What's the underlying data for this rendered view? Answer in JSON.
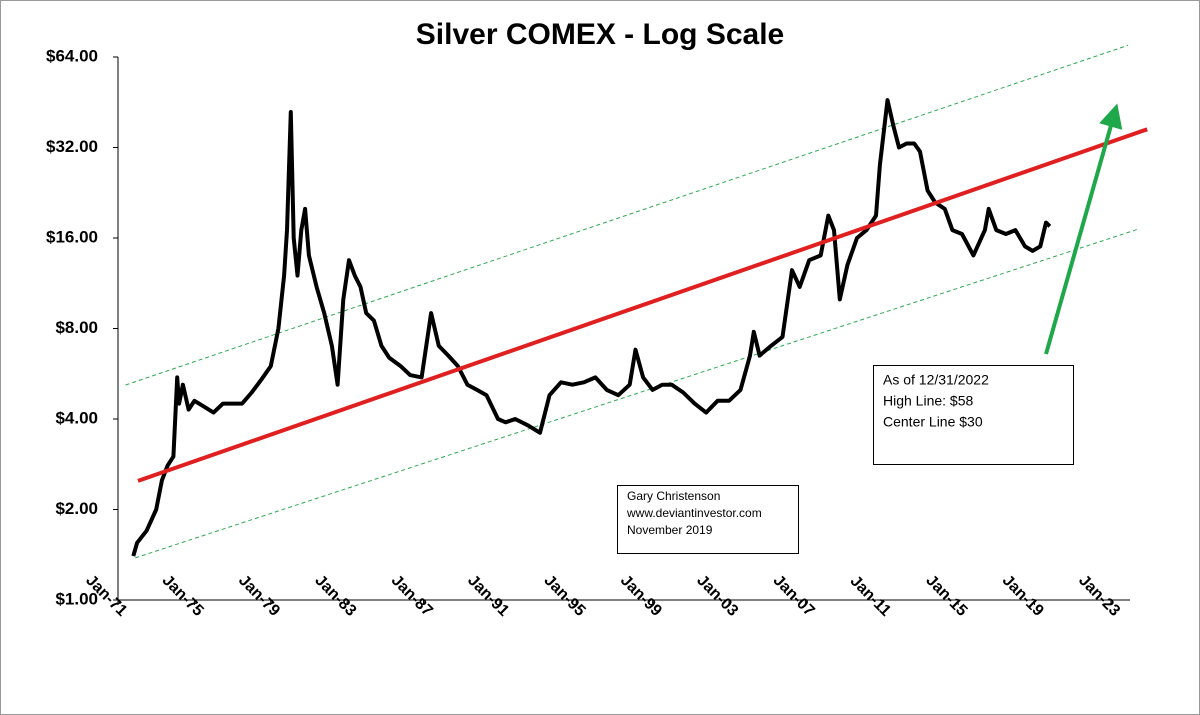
{
  "chart_data": {
    "type": "line",
    "title": "Silver COMEX - Log Scale",
    "log_scale": true,
    "xlim": [
      1971,
      2024
    ],
    "xticks": [
      {
        "value": 1971,
        "label": "Jan-71"
      },
      {
        "value": 1975,
        "label": "Jan-75"
      },
      {
        "value": 1979,
        "label": "Jan-79"
      },
      {
        "value": 1983,
        "label": "Jan-83"
      },
      {
        "value": 1987,
        "label": "Jan-87"
      },
      {
        "value": 1991,
        "label": "Jan-91"
      },
      {
        "value": 1995,
        "label": "Jan-95"
      },
      {
        "value": 1999,
        "label": "Jan-99"
      },
      {
        "value": 2003,
        "label": "Jan-03"
      },
      {
        "value": 2007,
        "label": "Jan-07"
      },
      {
        "value": 2011,
        "label": "Jan-11"
      },
      {
        "value": 2015,
        "label": "Jan-15"
      },
      {
        "value": 2019,
        "label": "Jan-19"
      },
      {
        "value": 2023,
        "label": "Jan-23"
      }
    ],
    "ylim": [
      1,
      64
    ],
    "yticks": [
      {
        "value": 1,
        "label": "$1.00"
      },
      {
        "value": 2,
        "label": "$2.00"
      },
      {
        "value": 4,
        "label": "$4.00"
      },
      {
        "value": 8,
        "label": "$8.00"
      },
      {
        "value": 16,
        "label": "$16.00"
      },
      {
        "value": 32,
        "label": "$32.00"
      },
      {
        "value": 64,
        "label": "$64.00"
      }
    ],
    "series": [
      {
        "color": "#000000",
        "width": 4,
        "x": [
          1971.8,
          1972.0,
          1972.5,
          1973.0,
          1973.3,
          1973.6,
          1973.9,
          1974.1,
          1974.2,
          1974.4,
          1974.7,
          1975.0,
          1975.5,
          1976.0,
          1976.5,
          1977.0,
          1977.5,
          1978.0,
          1978.5,
          1979.0,
          1979.4,
          1979.7,
          1979.85,
          1980.05,
          1980.2,
          1980.4,
          1980.6,
          1980.8,
          1981.0,
          1981.4,
          1981.8,
          1982.2,
          1982.5,
          1982.8,
          1983.1,
          1983.4,
          1983.7,
          1984.0,
          1984.4,
          1984.8,
          1985.2,
          1985.8,
          1986.3,
          1986.9,
          1987.4,
          1987.8,
          1988.3,
          1988.8,
          1989.3,
          1989.8,
          1990.3,
          1990.9,
          1991.3,
          1991.8,
          1992.5,
          1993.1,
          1993.6,
          1994.2,
          1994.8,
          1995.4,
          1996.0,
          1996.6,
          1997.2,
          1997.8,
          1998.1,
          1998.5,
          1999.0,
          1999.5,
          2000.0,
          2000.6,
          2001.2,
          2001.8,
          2002.4,
          2003.0,
          2003.6,
          2004.1,
          2004.3,
          2004.6,
          2005.2,
          2005.8,
          2006.3,
          2006.7,
          2007.2,
          2007.8,
          2008.2,
          2008.5,
          2008.8,
          2009.2,
          2009.7,
          2010.2,
          2010.7,
          2010.9,
          2011.3,
          2011.6,
          2011.9,
          2012.3,
          2012.7,
          2013.0,
          2013.4,
          2013.8,
          2014.3,
          2014.7,
          2015.2,
          2015.8,
          2016.4,
          2016.6,
          2017.0,
          2017.5,
          2018.0,
          2018.5,
          2018.9,
          2019.3,
          2019.6,
          2019.8
        ],
        "values": [
          1.4,
          1.55,
          1.7,
          2.0,
          2.5,
          2.8,
          3.0,
          5.5,
          4.5,
          5.2,
          4.3,
          4.6,
          4.4,
          4.2,
          4.5,
          4.5,
          4.5,
          4.9,
          5.4,
          6.0,
          8.0,
          12,
          17,
          42,
          16,
          12,
          17,
          20,
          14,
          11,
          9,
          7,
          5.2,
          10,
          13.5,
          12,
          11,
          9,
          8.5,
          7,
          6.4,
          6.0,
          5.6,
          5.5,
          9.0,
          7.0,
          6.5,
          6.0,
          5.2,
          5.0,
          4.8,
          4.0,
          3.9,
          4.0,
          3.8,
          3.6,
          4.8,
          5.3,
          5.2,
          5.3,
          5.5,
          5.0,
          4.8,
          5.2,
          6.8,
          5.5,
          5.0,
          5.2,
          5.2,
          4.9,
          4.5,
          4.2,
          4.6,
          4.6,
          5.0,
          6.5,
          7.8,
          6.5,
          7.0,
          7.5,
          12.5,
          11,
          13.5,
          14,
          19,
          17,
          10,
          13,
          16,
          17,
          19,
          28,
          46,
          38,
          32,
          33,
          33,
          31,
          23,
          21,
          20,
          17,
          16.5,
          14,
          17,
          20,
          17,
          16.5,
          17,
          15,
          14.5,
          15,
          18,
          17.5
        ]
      },
      {
        "color": "#e02020",
        "width": 4,
        "x": [
          1972.05,
          2024.9
        ],
        "values": [
          2.49,
          36.8
        ]
      },
      {
        "color": "#2eaa50",
        "width": 1,
        "dashed": true,
        "x": [
          1971.4,
          2023.9
        ],
        "values": [
          5.19,
          70
        ]
      },
      {
        "color": "#2eaa50",
        "width": 1,
        "dashed": true,
        "x": [
          1971.9,
          2024.4
        ],
        "values": [
          1.38,
          17.1
        ]
      }
    ],
    "annotations": [
      "As of 12/31/2022",
      "High Line: $58",
      "Center Line $30"
    ],
    "credits": [
      "Gary Christenson",
      "www.deviantinvestor.com",
      "November 2019"
    ]
  }
}
